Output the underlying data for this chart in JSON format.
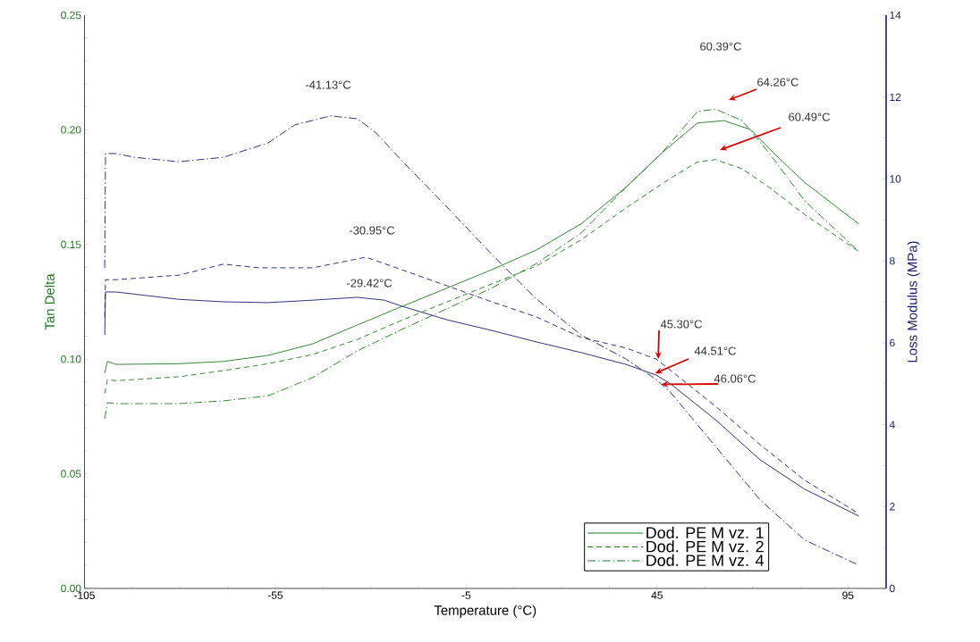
{
  "chart_data": {
    "type": "line",
    "xlabel": "Temperature (°C)",
    "ylabel": "Tan Delta",
    "y2label": "Loss Modulus (MPa)",
    "xlim": [
      -105,
      105
    ],
    "xticks": [
      -105,
      -55,
      -5,
      45,
      95
    ],
    "ylim": [
      0,
      0.25
    ],
    "yticks": [
      {
        "value": 0,
        "label": "0.00"
      },
      {
        "value": 0.05,
        "label": "0.05"
      },
      {
        "value": 0.1,
        "label": "0.10"
      },
      {
        "value": 0.15,
        "label": "0.15"
      },
      {
        "value": 0.2,
        "label": "0.20"
      },
      {
        "value": 0.25,
        "label": "0.25"
      }
    ],
    "y2lim": [
      0,
      14
    ],
    "y2ticks": [
      0,
      2,
      4,
      6,
      8,
      10,
      12,
      14
    ],
    "legend": "bottom right",
    "grid": false,
    "series": [
      {
        "name": "Dod. PE M vz. 1",
        "color": "#1f7a1f",
        "line_style": "solid",
        "x": [
          -99.7,
          -99.0,
          -96.7,
          -80.3,
          -68.6,
          -56.9,
          -45.2,
          -33.5,
          -21.8,
          -10.0,
          1.7,
          13.4,
          25.1,
          36.9,
          46.3,
          55.6,
          62.6,
          69.6,
          76.7,
          83.7,
          97.8
        ],
        "values": [
          0.094,
          0.099,
          0.0977,
          0.098,
          0.099,
          0.1016,
          0.1067,
          0.1149,
          0.123,
          0.131,
          0.139,
          0.1476,
          0.159,
          0.175,
          0.19,
          0.203,
          0.204,
          0.2,
          0.188,
          0.177,
          0.159
        ]
      },
      {
        "name": "Dod. PE M vz. 2",
        "color": "#1f7a1f",
        "line_style": "dashed",
        "x": [
          -99.7,
          -99.0,
          -96.7,
          -80.3,
          -68.6,
          -56.9,
          -45.2,
          -33.5,
          -21.8,
          -10.0,
          1.7,
          13.4,
          25.1,
          36.9,
          48.6,
          55.6,
          60.3,
          67.3,
          74.3,
          83.7,
          97.8
        ],
        "values": [
          0.085,
          0.091,
          0.0906,
          0.0923,
          0.095,
          0.098,
          0.102,
          0.1086,
          0.117,
          0.125,
          0.1328,
          0.1406,
          0.152,
          0.166,
          0.179,
          0.186,
          0.187,
          0.183,
          0.175,
          0.163,
          0.147
        ]
      },
      {
        "name": "Dod. PE M vz. 4",
        "color": "#1f7a1f",
        "line_style": "dashdot",
        "x": [
          -99.7,
          -99.0,
          -96.7,
          -80.3,
          -68.6,
          -56.9,
          -45.2,
          -33.5,
          -21.8,
          -10.0,
          1.7,
          13.4,
          25.1,
          36.9,
          46.3,
          55.6,
          60.3,
          67.3,
          74.3,
          83.7,
          97.8
        ],
        "values": [
          0.074,
          0.081,
          0.0806,
          0.0806,
          0.0818,
          0.084,
          0.092,
          0.1036,
          0.113,
          0.122,
          0.131,
          0.1417,
          0.155,
          0.175,
          0.19,
          0.208,
          0.209,
          0.204,
          0.19,
          0.169,
          0.147
        ]
      },
      {
        "color": "#1c1c6e",
        "line_style": "solid",
        "axis": "y2",
        "x": [
          -99.7,
          -99.5,
          -96.7,
          -80.3,
          -68.6,
          -56.9,
          -45.2,
          -33.5,
          -26.5,
          -21.8,
          -10.0,
          1.7,
          13.4,
          25.1,
          36.9,
          44.8,
          48.6,
          60.3,
          72.0,
          83.7,
          97.8
        ],
        "values": [
          6.19,
          7.24,
          7.24,
          7.06,
          7.0,
          6.98,
          7.04,
          7.11,
          7.04,
          6.89,
          6.56,
          6.3,
          6.02,
          5.76,
          5.47,
          5.21,
          4.99,
          4.12,
          3.14,
          2.42,
          1.77
        ]
      },
      {
        "color": "#1c1c6e",
        "line_style": "dashed",
        "axis": "y2",
        "x": [
          -99.7,
          -99.5,
          -96.7,
          -80.3,
          -68.6,
          -59.2,
          -45.2,
          -31.2,
          -21.8,
          -10.0,
          1.7,
          13.4,
          25.1,
          36.9,
          44.8,
          48.6,
          60.3,
          72.0,
          83.7,
          97.8
        ],
        "values": [
          6.63,
          7.54,
          7.54,
          7.65,
          7.92,
          7.83,
          7.83,
          8.09,
          7.78,
          7.39,
          7.0,
          6.63,
          6.13,
          5.87,
          5.6,
          5.32,
          4.45,
          3.51,
          2.64,
          1.83
        ]
      },
      {
        "color": "#1c1c6e",
        "line_style": "dashdot",
        "axis": "y2",
        "x": [
          -99.7,
          -99.5,
          -96.7,
          -92.0,
          -80.3,
          -68.6,
          -56.9,
          -49.9,
          -40.5,
          -33.5,
          -28.8,
          -21.8,
          -10.0,
          1.7,
          13.4,
          25.1,
          36.9,
          44.8,
          48.6,
          60.3,
          72.0,
          83.7,
          97.8
        ],
        "values": [
          7.83,
          10.62,
          10.62,
          10.53,
          10.42,
          10.53,
          10.88,
          11.32,
          11.54,
          11.47,
          11.14,
          10.44,
          9.31,
          8.16,
          7.07,
          6.19,
          5.6,
          5.1,
          4.78,
          3.47,
          2.16,
          1.18,
          0.57
        ]
      }
    ],
    "annotations": [
      "-41.13°C",
      "-30.95°C",
      "-29.42°C",
      "60.39°C",
      "64.26°C",
      "60.49°C",
      {
        "text": "45.30°C",
        "x": 45.3,
        "y": 0.1
      },
      {
        "text": "44.51°C",
        "x": 44.51,
        "y": 0.0938
      },
      {
        "text": "46.06°C",
        "x": 46.06,
        "y": 0.089
      }
    ]
  }
}
